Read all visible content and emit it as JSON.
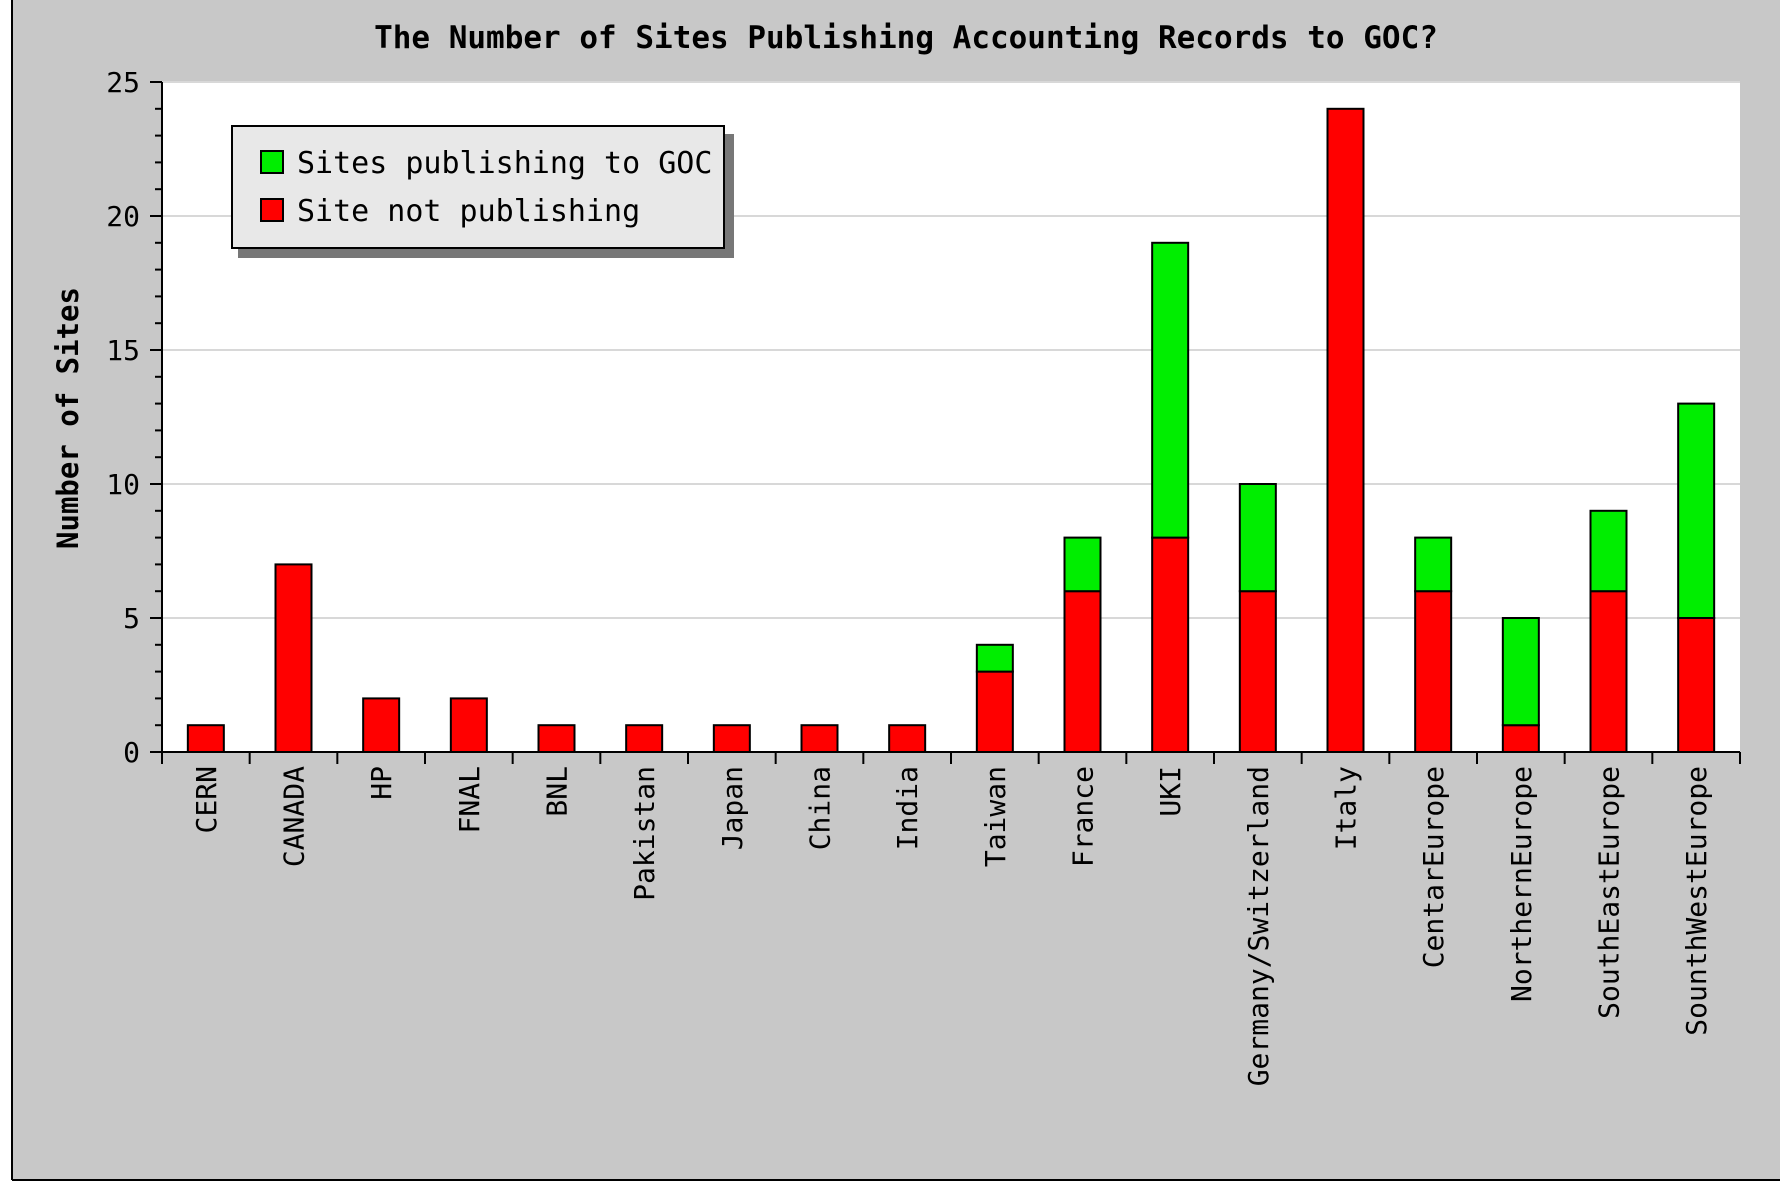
{
  "chart_data": {
    "type": "bar",
    "stacked": true,
    "title": "The Number of Sites Publishing Accounting Records to GOC?",
    "xlabel": "",
    "ylabel": "Number of Sites",
    "ylim": [
      0,
      25
    ],
    "yticks": [
      0,
      5,
      10,
      15,
      20,
      25
    ],
    "grid": true,
    "legend_position": "top-left",
    "categories": [
      "CERN",
      "CANADA",
      "HP",
      "FNAL",
      "BNL",
      "Pakistan",
      "Japan",
      "China",
      "India",
      "Taiwan",
      "France",
      "UKI",
      "Germany/Switzerland",
      "Italy",
      "CentarEurope",
      "NorthernEurope",
      "SouthEastEurope",
      "SounthWestEurope"
    ],
    "series": [
      {
        "name": "Site not publishing",
        "color": "#ff0000",
        "values": [
          1,
          7,
          2,
          2,
          1,
          1,
          1,
          1,
          1,
          3,
          6,
          8,
          6,
          24,
          6,
          1,
          6,
          5
        ]
      },
      {
        "name": "Sites publishing to GOC",
        "color": "#00ee00",
        "values": [
          0,
          0,
          0,
          0,
          0,
          0,
          0,
          0,
          0,
          1,
          2,
          11,
          4,
          0,
          2,
          4,
          3,
          8
        ]
      }
    ],
    "legend_order": [
      1,
      0
    ]
  },
  "colors": {
    "background": "#c8c8c8",
    "plot_background": "#ffffff",
    "gridline": "#d8d8d8",
    "legend_background": "#e8e8e8"
  }
}
